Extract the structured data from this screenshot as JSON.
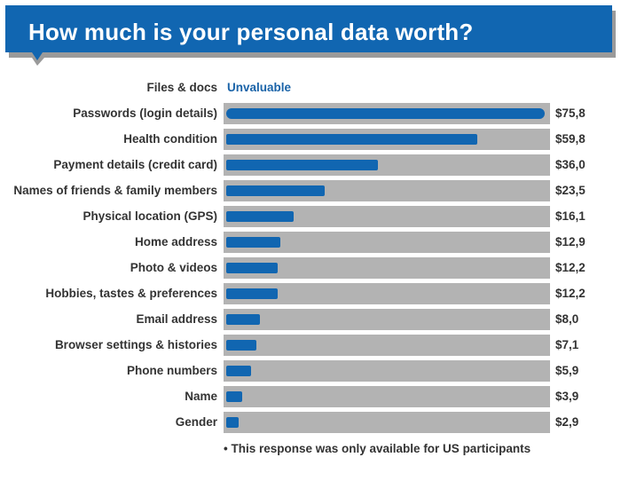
{
  "colors": {
    "banner": "#1166b1",
    "banner_shadow": "#9a9a9a",
    "bar": "#1166b1",
    "track": "#b3b3b3",
    "special_text": "#1a63a8"
  },
  "chart_data": {
    "type": "bar",
    "orientation": "horizontal",
    "title": "How much is your personal data worth?",
    "xlim": [
      0,
      80
    ],
    "categories": [
      "Files & docs",
      "Passwords (login details)",
      "Health condition",
      "Payment details (credit card)",
      "Names of friends & family members",
      "Physical location (GPS)",
      "Home address",
      "Photo & videos",
      "Hobbies, tastes & preferences",
      "Email address",
      "Browser settings & histories",
      "Phone numbers",
      "Name",
      "Gender"
    ],
    "values": [
      null,
      75.8,
      59.8,
      36.0,
      23.5,
      16.1,
      12.9,
      12.2,
      12.2,
      8.0,
      7.1,
      5.9,
      3.9,
      2.9
    ],
    "value_labels": [
      "Unvaluable",
      "$75,8",
      "$59,8",
      "$36,0",
      "$23,5",
      "$16,1",
      "$12,9",
      "$12,2",
      "$12,2",
      "$8,0",
      "$7,1",
      "$5,9",
      "$3,9",
      "$2,9"
    ],
    "footnote": "• This response was only available for US participants"
  }
}
